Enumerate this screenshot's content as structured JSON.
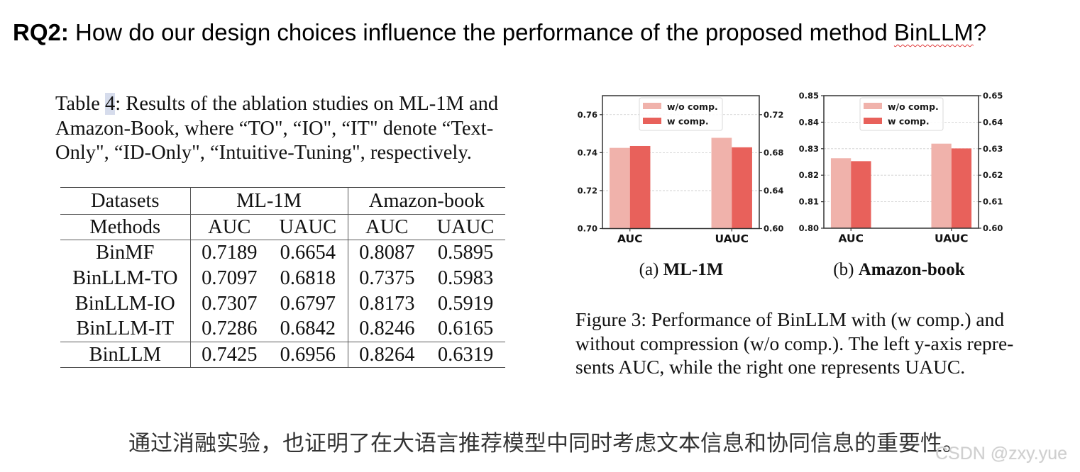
{
  "slide": {
    "title": {
      "label": "RQ2:",
      "question_before": " How do our design choices influence the performance of the proposed method ",
      "question_method": "BinLLM",
      "question_after": "?"
    },
    "summary_zh": "通过消融实验，也证明了在大语言推荐模型中同时考虑文本信息和协同信息的重要性。",
    "watermark": "CSDN @zxy.yue"
  },
  "colors": {
    "caption_number_highlight": "#d6dcec",
    "spellcheck_underline": "#e03a3a",
    "summary_text": "#333333"
  },
  "table_caption": {
    "label_prefix": "Table ",
    "number": "4",
    "line1_rest": ": Results of the ablation studies on ML-1M and",
    "line2": "Amazon-Book, where “TO\", “IO\", “IT\" denote “Text-",
    "line3": "Only\", “ID-Only\", “Intuitive-Tuning\", respectively."
  },
  "table": {
    "header_row1": {
      "col0": "Datasets",
      "group1": "ML-1M",
      "group2": "Amazon-book"
    },
    "header_row2": [
      "Methods",
      "AUC",
      "UAUC",
      "AUC",
      "UAUC"
    ],
    "rows": [
      {
        "method": "BinMF",
        "ml1m_auc": "0.7189",
        "ml1m_uauc": "0.6654",
        "book_auc": "0.8087",
        "book_uauc": "0.5895"
      },
      {
        "method": "BinLLM-TO",
        "ml1m_auc": "0.7097",
        "ml1m_uauc": "0.6818",
        "book_auc": "0.7375",
        "book_uauc": "0.5983"
      },
      {
        "method": "BinLLM-IO",
        "ml1m_auc": "0.7307",
        "ml1m_uauc": "0.6797",
        "book_auc": "0.8173",
        "book_uauc": "0.5919"
      },
      {
        "method": "BinLLM-IT",
        "ml1m_auc": "0.7286",
        "ml1m_uauc": "0.6842",
        "book_auc": "0.8246",
        "book_uauc": "0.6165"
      },
      {
        "method": "BinLLM",
        "ml1m_auc": "0.7425",
        "ml1m_uauc": "0.6956",
        "book_auc": "0.8264",
        "book_uauc": "0.6319"
      }
    ]
  },
  "figure": {
    "caption_lines": [
      "Figure 3: Performance of BinLLM with (w comp.) and",
      "without compression (w/o comp.). The left y-axis repre-",
      "sents AUC, while the right one represents UAUC."
    ]
  },
  "chart_data": [
    {
      "type": "bar",
      "panel_label": "(a)",
      "title": "ML-1M",
      "xlabel": "",
      "ylabel": "",
      "categories": [
        "AUC",
        "UAUC"
      ],
      "axis_for_category": [
        "left",
        "right"
      ],
      "series": [
        {
          "name": "w/o comp.",
          "color": "#F0B2AB",
          "values": [
            0.7425,
            0.6956
          ]
        },
        {
          "name": "w comp.",
          "color": "#E8615B",
          "values": [
            0.7435,
            0.6856
          ]
        }
      ],
      "y_left": {
        "represents": "AUC",
        "range": [
          0.7,
          0.77
        ],
        "ticks": [
          0.7,
          0.72,
          0.74,
          0.76
        ],
        "tick_labels": [
          "0.70",
          "0.72",
          "0.74",
          "0.76"
        ]
      },
      "y_right": {
        "represents": "UAUC",
        "range": [
          0.6,
          0.74
        ],
        "ticks": [
          0.6,
          0.64,
          0.68,
          0.72
        ],
        "tick_labels": [
          "0.60",
          "0.64",
          "0.68",
          "0.72"
        ]
      },
      "xlim": [
        -0.27,
        1.27
      ],
      "bar_width": 0.2,
      "grid": true,
      "legend_position": "upper center"
    },
    {
      "type": "bar",
      "panel_label": "(b)",
      "title": "Amazon-book",
      "xlabel": "",
      "ylabel": "",
      "categories": [
        "AUC",
        "UAUC"
      ],
      "axis_for_category": [
        "left",
        "right"
      ],
      "series": [
        {
          "name": "w/o comp.",
          "color": "#F0B2AB",
          "values": [
            0.8264,
            0.6319
          ]
        },
        {
          "name": "w comp.",
          "color": "#E8615B",
          "values": [
            0.8253,
            0.6301
          ]
        }
      ],
      "y_left": {
        "represents": "AUC",
        "range": [
          0.8,
          0.85
        ],
        "ticks": [
          0.8,
          0.81,
          0.82,
          0.83,
          0.84,
          0.85
        ],
        "tick_labels": [
          "0.80",
          "0.81",
          "0.82",
          "0.83",
          "0.84",
          "0.85"
        ]
      },
      "y_right": {
        "represents": "UAUC",
        "range": [
          0.6,
          0.65
        ],
        "ticks": [
          0.6,
          0.61,
          0.62,
          0.63,
          0.64,
          0.65
        ],
        "tick_labels": [
          "0.60",
          "0.61",
          "0.62",
          "0.63",
          "0.64",
          "0.65"
        ]
      },
      "xlim": [
        -0.27,
        1.27
      ],
      "bar_width": 0.2,
      "grid": true,
      "legend_position": "upper center"
    }
  ]
}
